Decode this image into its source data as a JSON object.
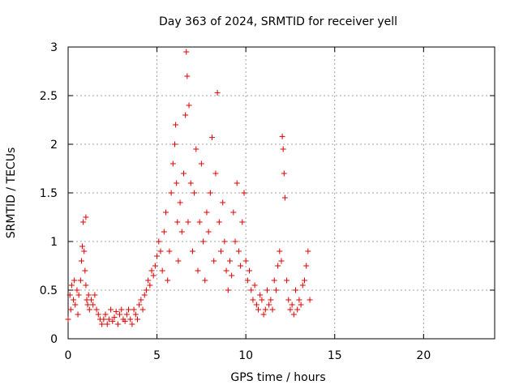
{
  "chart_data": {
    "type": "scatter",
    "title": "Day 363 of 2024, SRMTID for receiver yell",
    "xlabel": "GPS time / hours",
    "ylabel": "SRMTID / TECUs",
    "xlim": [
      0,
      24
    ],
    "ylim": [
      0,
      3
    ],
    "xticks": [
      0,
      5,
      10,
      15,
      20
    ],
    "yticks": [
      0,
      0.5,
      1,
      1.5,
      2,
      2.5,
      3
    ],
    "xtick_labels": [
      "0",
      "5",
      "10",
      "15",
      "20"
    ],
    "ytick_labels": [
      "0",
      "0.5",
      "1",
      "1.5",
      "2",
      "2.5",
      "3"
    ],
    "grid": true,
    "marker": "+",
    "color": "#e00000",
    "series": [
      {
        "name": "yell",
        "x": [
          0.0,
          0.1,
          0.15,
          0.2,
          0.3,
          0.35,
          0.4,
          0.5,
          0.55,
          0.6,
          0.7,
          0.75,
          0.8,
          0.85,
          0.9,
          0.95,
          1.0,
          1.0,
          1.05,
          1.1,
          1.15,
          1.2,
          1.3,
          1.4,
          1.5,
          1.6,
          1.7,
          1.8,
          1.9,
          2.0,
          2.1,
          2.2,
          2.3,
          2.4,
          2.5,
          2.6,
          2.7,
          2.8,
          2.9,
          3.0,
          3.1,
          3.2,
          3.3,
          3.4,
          3.5,
          3.6,
          3.7,
          3.8,
          3.9,
          4.0,
          4.1,
          4.2,
          4.3,
          4.4,
          4.5,
          4.6,
          4.7,
          4.8,
          4.9,
          5.0,
          5.1,
          5.2,
          5.3,
          5.4,
          5.5,
          5.6,
          5.7,
          5.8,
          5.9,
          6.0,
          6.05,
          6.1,
          6.15,
          6.2,
          6.3,
          6.4,
          6.5,
          6.6,
          6.65,
          6.7,
          6.75,
          6.8,
          6.9,
          7.0,
          7.1,
          7.2,
          7.3,
          7.4,
          7.5,
          7.6,
          7.7,
          7.8,
          7.9,
          8.0,
          8.1,
          8.2,
          8.3,
          8.4,
          8.5,
          8.6,
          8.7,
          8.8,
          8.9,
          9.0,
          9.1,
          9.2,
          9.3,
          9.4,
          9.5,
          9.6,
          9.7,
          9.8,
          9.9,
          10.0,
          10.1,
          10.2,
          10.3,
          10.4,
          10.5,
          10.6,
          10.7,
          10.8,
          10.9,
          11.0,
          11.1,
          11.2,
          11.3,
          11.4,
          11.5,
          11.6,
          11.7,
          11.8,
          11.9,
          12.0,
          12.05,
          12.1,
          12.15,
          12.2,
          12.3,
          12.4,
          12.5,
          12.6,
          12.7,
          12.8,
          12.9,
          13.0,
          13.1,
          13.2,
          13.3,
          13.4,
          13.5,
          13.6
        ],
        "y": [
          0.2,
          0.45,
          0.3,
          0.55,
          0.4,
          0.6,
          0.35,
          0.5,
          0.25,
          0.45,
          0.6,
          0.8,
          0.95,
          1.2,
          0.9,
          0.7,
          1.25,
          0.55,
          0.4,
          0.35,
          0.45,
          0.3,
          0.4,
          0.35,
          0.45,
          0.3,
          0.25,
          0.2,
          0.15,
          0.2,
          0.25,
          0.15,
          0.2,
          0.3,
          0.18,
          0.22,
          0.28,
          0.15,
          0.25,
          0.3,
          0.2,
          0.18,
          0.25,
          0.3,
          0.2,
          0.15,
          0.3,
          0.25,
          0.2,
          0.35,
          0.4,
          0.3,
          0.45,
          0.5,
          0.6,
          0.55,
          0.7,
          0.65,
          0.75,
          0.85,
          1.0,
          0.9,
          0.7,
          1.1,
          1.3,
          0.6,
          0.9,
          1.5,
          1.8,
          2.0,
          2.2,
          1.6,
          1.2,
          0.8,
          1.4,
          1.1,
          1.7,
          2.3,
          2.95,
          2.7,
          1.2,
          2.4,
          1.6,
          0.9,
          1.5,
          1.95,
          0.7,
          1.2,
          1.8,
          1.0,
          0.6,
          1.3,
          1.1,
          1.5,
          2.07,
          0.8,
          1.7,
          2.53,
          1.2,
          0.9,
          1.4,
          1.0,
          0.7,
          0.5,
          0.8,
          0.65,
          1.3,
          1.0,
          1.6,
          0.9,
          0.75,
          1.2,
          1.5,
          0.8,
          0.6,
          0.7,
          0.5,
          0.4,
          0.55,
          0.35,
          0.3,
          0.45,
          0.4,
          0.25,
          0.3,
          0.5,
          0.35,
          0.4,
          0.3,
          0.6,
          0.5,
          0.75,
          0.9,
          0.8,
          2.08,
          1.95,
          1.7,
          1.45,
          0.6,
          0.4,
          0.3,
          0.35,
          0.25,
          0.5,
          0.3,
          0.4,
          0.35,
          0.55,
          0.6,
          0.75,
          0.9,
          0.4
        ]
      }
    ]
  }
}
